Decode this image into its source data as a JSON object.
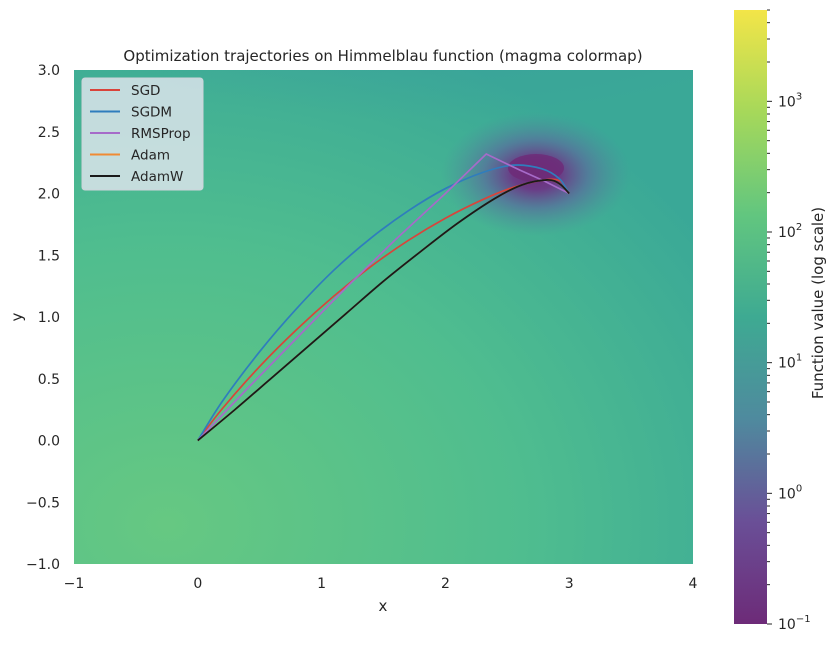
{
  "chart_data": {
    "type": "line",
    "title": "Optimization trajectories on Himmelblau function (magma colormap)",
    "xlabel": "x",
    "ylabel": "y",
    "xlim": [
      -1,
      4
    ],
    "ylim": [
      -1,
      3
    ],
    "xticks": [
      "−1",
      "0",
      "1",
      "2",
      "3",
      "4"
    ],
    "yticks": [
      "−1.0",
      "−0.5",
      "0.0",
      "0.5",
      "1.0",
      "1.5",
      "2.0",
      "2.5",
      "3.0"
    ],
    "legend_position": "top-left",
    "grid": false,
    "colorbar": {
      "label": "Function value (log scale)",
      "scale": "log",
      "range": [
        0.1,
        5000
      ],
      "ticks": [
        {
          "base": "10",
          "exp": "−1",
          "value": 0.1
        },
        {
          "base": "10",
          "exp": "0",
          "value": 1
        },
        {
          "base": "10",
          "exp": "1",
          "value": 10
        },
        {
          "base": "10",
          "exp": "2",
          "value": 100
        },
        {
          "base": "10",
          "exp": "3",
          "value": 1000
        }
      ],
      "colors": [
        "#6d2b78",
        "#6a4f97",
        "#4f8a9e",
        "#3eaa92",
        "#62c67f",
        "#a6d85a",
        "#f3e548"
      ]
    },
    "series": [
      {
        "name": "SGD",
        "color": "#d9443b",
        "x": [
          0,
          0.2,
          0.5,
          0.8,
          1.1,
          1.4,
          1.7,
          2.0,
          2.3,
          2.55,
          2.8,
          2.93,
          3.0
        ],
        "y": [
          0,
          0.26,
          0.6,
          0.9,
          1.17,
          1.41,
          1.62,
          1.8,
          1.95,
          2.05,
          2.11,
          2.1,
          2.0
        ]
      },
      {
        "name": "SGDM",
        "color": "#2f7dbd",
        "x": [
          0,
          0.2,
          0.5,
          0.8,
          1.1,
          1.4,
          1.7,
          2.0,
          2.3,
          2.55,
          2.78,
          2.92,
          3.0
        ],
        "y": [
          0,
          0.32,
          0.72,
          1.07,
          1.38,
          1.64,
          1.86,
          2.04,
          2.17,
          2.23,
          2.2,
          2.12,
          2.0
        ]
      },
      {
        "name": "RMSProp",
        "color": "#a66bc9",
        "x": [
          0,
          0.4,
          0.8,
          1.2,
          1.6,
          2.0,
          2.33,
          2.6,
          2.8,
          3.0
        ],
        "y": [
          0,
          0.42,
          0.83,
          1.24,
          1.63,
          2.0,
          2.32,
          2.19,
          2.1,
          2.0
        ]
      },
      {
        "name": "Adam",
        "color": "#f08a33",
        "x": [
          0,
          0.3,
          0.6,
          0.9,
          1.2,
          1.5,
          1.8,
          2.1,
          2.4,
          2.62,
          2.82,
          2.92,
          3.0
        ],
        "y": [
          0,
          0.25,
          0.51,
          0.77,
          1.03,
          1.29,
          1.53,
          1.76,
          1.96,
          2.07,
          2.11,
          2.08,
          2.0
        ]
      },
      {
        "name": "AdamW",
        "color": "#1a1a1a",
        "x": [
          0,
          0.3,
          0.6,
          0.9,
          1.2,
          1.5,
          1.8,
          2.1,
          2.4,
          2.62,
          2.82,
          2.92,
          3.0
        ],
        "y": [
          0,
          0.25,
          0.51,
          0.77,
          1.03,
          1.29,
          1.53,
          1.76,
          1.96,
          2.07,
          2.11,
          2.08,
          2.0
        ]
      }
    ]
  }
}
